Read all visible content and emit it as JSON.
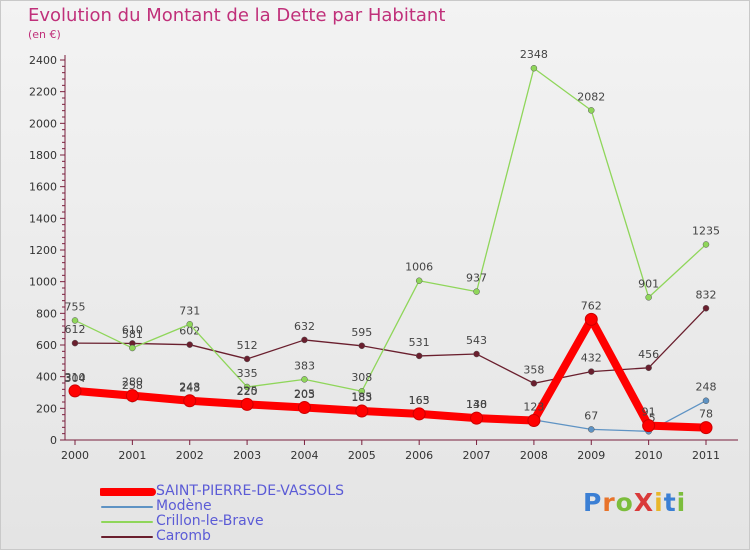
{
  "header": {
    "title": "Evolution du Montant de la Dette par Habitant",
    "unit": "(en €)"
  },
  "logo": {
    "text": "ProXiti"
  },
  "chart_data": {
    "type": "line",
    "title": "Evolution du Montant de la Dette par Habitant",
    "ylabel": "(en €)",
    "xlabel": "",
    "categories": [
      "2000",
      "2001",
      "2002",
      "2003",
      "2004",
      "2005",
      "2006",
      "2007",
      "2008",
      "2009",
      "2010",
      "2011"
    ],
    "ylim": [
      0,
      2400
    ],
    "yticks": [
      0,
      200,
      400,
      600,
      800,
      1000,
      1200,
      1400,
      1600,
      1800,
      2000,
      2200,
      2400
    ],
    "grid": false,
    "legend_position": "bottom-left",
    "series": [
      {
        "name": "Caromb",
        "color": "#6a1f2e",
        "values": [
          612,
          610,
          602,
          512,
          632,
          595,
          531,
          543,
          358,
          432,
          456,
          832
        ],
        "labels": [
          "612",
          "610",
          "602",
          "512",
          "632",
          "595",
          "531",
          "543",
          "358",
          "432",
          "456",
          "832"
        ]
      },
      {
        "name": "Crillon-le-Brave",
        "color": "#8fd65a",
        "values": [
          755,
          581,
          731,
          335,
          383,
          308,
          1006,
          937,
          2348,
          2082,
          901,
          1235
        ],
        "labels": [
          "755",
          "581",
          "731",
          "335",
          "383",
          "308",
          "1006",
          "937",
          "2348",
          "2082",
          "901",
          "1235"
        ]
      },
      {
        "name": "Modène",
        "color": "#5e93c4",
        "values": [
          304,
          258,
          243,
          220,
          203,
          185,
          163,
          140,
          127,
          67,
          55,
          248
        ],
        "labels": [
          "304",
          "258",
          "243",
          "220",
          "203",
          "185",
          "163",
          "140",
          "",
          "67",
          "55",
          "248"
        ]
      },
      {
        "name": "SAINT-PIERRE-DE-VASSOLS",
        "color": "#ff0000",
        "values": [
          310,
          280,
          248,
          225,
          205,
          183,
          165,
          138,
          123,
          762,
          91,
          78
        ],
        "labels": [
          "310",
          "280",
          "248",
          "225",
          "205",
          "183",
          "165",
          "138",
          "123",
          "762",
          "91",
          "78"
        ]
      }
    ]
  },
  "legend": [
    {
      "label": "SAINT-PIERRE-DE-VASSOLS",
      "color": "#ff0000"
    },
    {
      "label": "Modène",
      "color": "#5e93c4"
    },
    {
      "label": "Crillon-le-Brave",
      "color": "#8fd65a"
    },
    {
      "label": "Caromb",
      "color": "#6a1f2e"
    }
  ]
}
